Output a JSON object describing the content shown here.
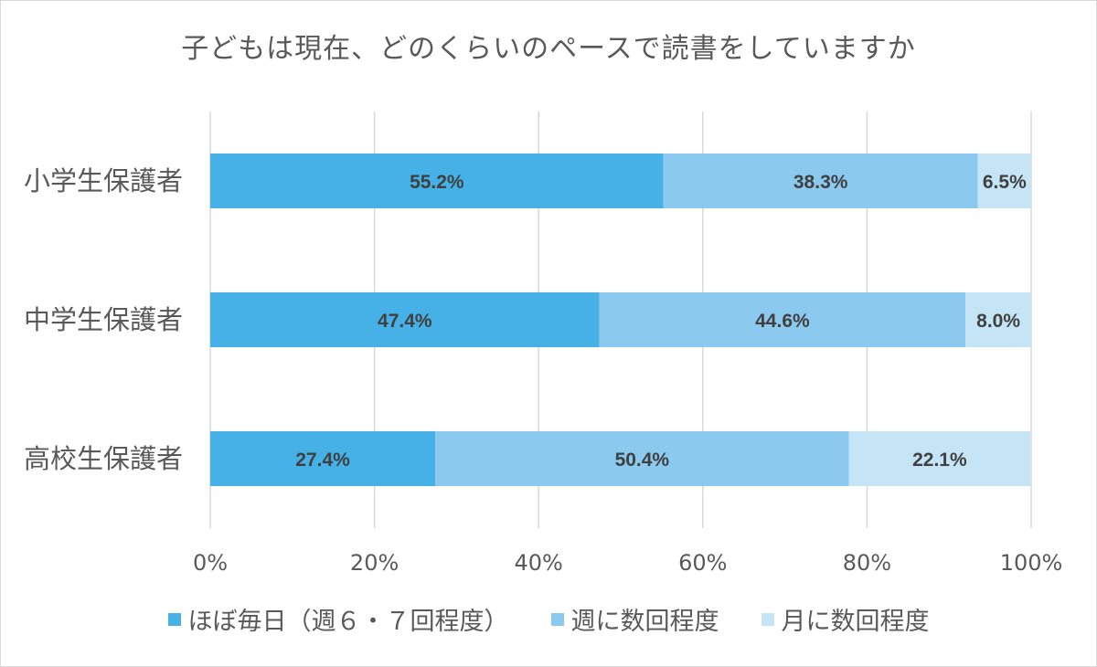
{
  "chart_data": {
    "type": "bar",
    "orientation": "horizontal",
    "stacked": true,
    "title": "子どもは現在、どのくらいのペースで読書をしていますか",
    "categories": [
      "小学生保護者",
      "中学生保護者",
      "高校生保護者"
    ],
    "series": [
      {
        "name": "ほぼ毎日（週６・７回程度）",
        "values": [
          55.2,
          47.4,
          27.4
        ],
        "labels": [
          "55.2%",
          "47.4%",
          "27.4%"
        ],
        "color": "#45b1e6"
      },
      {
        "name": "週に数回程度",
        "values": [
          38.3,
          44.6,
          50.4
        ],
        "labels": [
          "38.3%",
          "44.6%",
          "50.4%"
        ],
        "color": "#8bcaee"
      },
      {
        "name": "月に数回程度",
        "values": [
          6.5,
          8.0,
          22.1
        ],
        "labels": [
          "6.5%",
          "8.0%",
          "22.1%"
        ],
        "color": "#c5e5f6"
      }
    ],
    "x_ticks": [
      "0%",
      "20%",
      "40%",
      "60%",
      "80%",
      "100%"
    ],
    "xlim": [
      0,
      100
    ],
    "grid": true,
    "legend_position": "bottom"
  }
}
